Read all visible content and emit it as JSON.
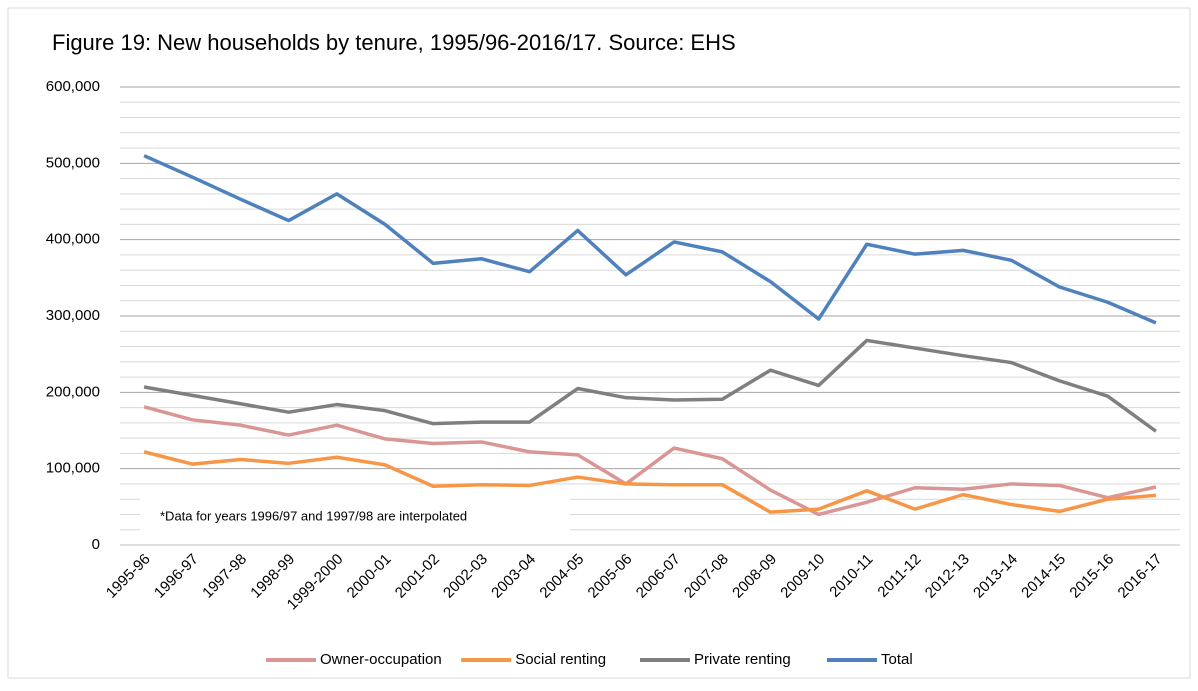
{
  "chart_data": {
    "type": "line",
    "title": "Figure 19: New households by tenure, 1995/96-2016/17. Source: EHS",
    "annotation": "*Data for years 1996/97 and 1997/98 are interpolated",
    "categories": [
      "1995-96",
      "1996-97",
      "1997-98",
      "1998-99",
      "1999-2000",
      "2000-01",
      "2001-02",
      "2002-03",
      "2003-04",
      "2004-05",
      "2005-06",
      "2006-07",
      "2007-08",
      "2008-09",
      "2009-10",
      "2010-11",
      "2011-12",
      "2012-13",
      "2013-14",
      "2014-15",
      "2015-16",
      "2016-17"
    ],
    "series": [
      {
        "name": "Owner-occupation",
        "color": "#d99694",
        "values": [
          181000,
          164000,
          157000,
          144000,
          157000,
          139000,
          133000,
          135000,
          122000,
          118000,
          80000,
          127000,
          113000,
          72000,
          40000,
          56000,
          75000,
          73000,
          80000,
          78000,
          62000,
          76000
        ]
      },
      {
        "name": "Social renting",
        "color": "#f79646",
        "values": [
          122000,
          106000,
          112000,
          107000,
          115000,
          105000,
          77000,
          79000,
          78000,
          89000,
          80000,
          79000,
          79000,
          43000,
          47000,
          71000,
          47000,
          66000,
          53000,
          44000,
          60000,
          65000
        ]
      },
      {
        "name": "Private renting",
        "color": "#7f7f7f",
        "values": [
          207000,
          196000,
          185000,
          174000,
          184000,
          176000,
          159000,
          161000,
          161000,
          205000,
          193000,
          190000,
          191000,
          229000,
          209000,
          268000,
          258000,
          248000,
          239000,
          215000,
          195000,
          149000
        ]
      },
      {
        "name": "Total",
        "color": "#4f81bd",
        "values": [
          510000,
          482000,
          453000,
          425000,
          460000,
          420000,
          369000,
          375000,
          358000,
          412000,
          354000,
          397000,
          384000,
          345000,
          296000,
          394000,
          381000,
          386000,
          373000,
          338000,
          318000,
          291000
        ]
      }
    ],
    "ylim": [
      0,
      600000
    ],
    "yticks": [
      0,
      {
        "value": 100000,
        "label": "100,000"
      },
      {
        "value": 200000,
        "label": "200,000"
      },
      {
        "value": 300000,
        "label": "300,000"
      },
      {
        "value": 400000,
        "label": "400,000"
      },
      {
        "value": 500000,
        "label": "500,000"
      },
      {
        "value": 600000,
        "label": "600,000"
      }
    ],
    "minor_yticks": [
      20000,
      40000,
      60000,
      80000,
      120000,
      140000,
      160000,
      180000,
      220000,
      240000,
      260000,
      280000,
      320000,
      340000,
      360000,
      380000,
      420000,
      440000,
      460000,
      480000,
      520000,
      540000,
      560000,
      580000
    ],
    "grid": true,
    "legend": "bottom"
  }
}
